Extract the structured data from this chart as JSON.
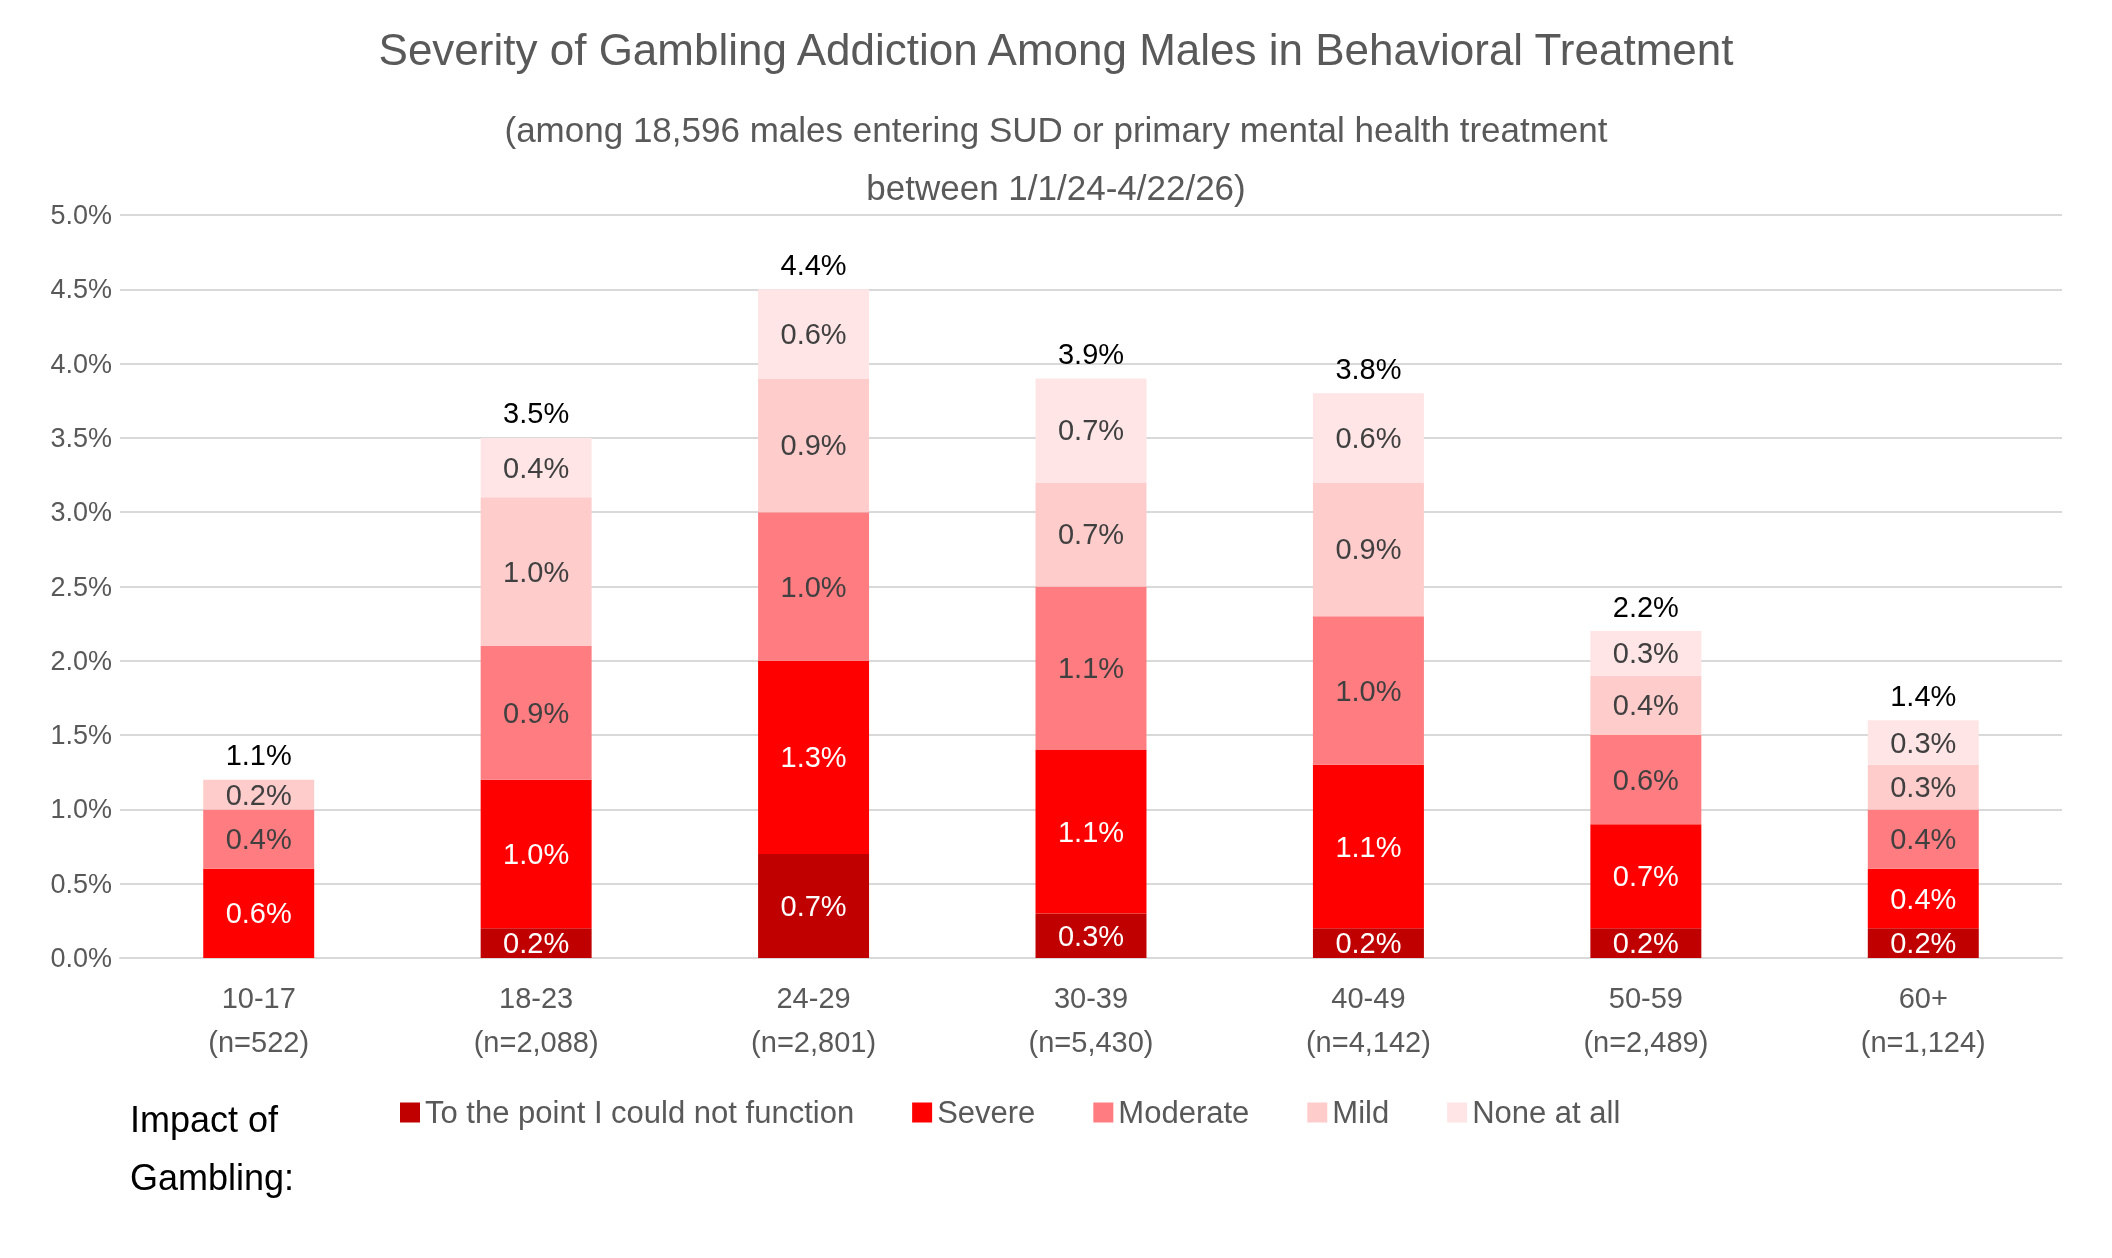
{
  "chart_data": {
    "type": "bar",
    "stacked": true,
    "title": "Severity of Gambling Addiction Among Males in Behavioral Treatment",
    "subtitle": "(among 18,596 males entering SUD or primary mental health treatment\nbetween 1/1/24-4/22/26)",
    "categories": [
      "10-17\n(n=522)",
      "18-23\n(n=2,088)",
      "24-29\n(n=2,801)",
      "30-39\n(n=5,430)",
      "40-49\n(n=4,142)",
      "50-59\n(n=2,489)",
      "60+\n(n=1,124)"
    ],
    "series": [
      {
        "name": "To the point I could not function",
        "color": "#c00000",
        "values": [
          null,
          0.2,
          0.7,
          0.3,
          0.2,
          0.2,
          0.2
        ],
        "value_labels": [
          null,
          "0.2%",
          "0.7%",
          "0.3%",
          "0.2%",
          "0.2%",
          "0.2%"
        ]
      },
      {
        "name": "Severe",
        "color": "#ff0000",
        "values": [
          0.6,
          1.0,
          1.3,
          1.1,
          1.1,
          0.7,
          0.4
        ],
        "value_labels": [
          "0.6%",
          "1.0%",
          "1.3%",
          "1.1%",
          "1.1%",
          "0.7%",
          "0.4%"
        ]
      },
      {
        "name": "Moderate",
        "color": "#ff7c80",
        "values": [
          0.4,
          0.9,
          1.0,
          1.1,
          1.0,
          0.6,
          0.4
        ],
        "value_labels": [
          "0.4%",
          "0.9%",
          "1.0%",
          "1.1%",
          "1.0%",
          "0.6%",
          "0.4%"
        ]
      },
      {
        "name": "Mild",
        "color": "#ffcccc",
        "values": [
          0.2,
          1.0,
          0.9,
          0.7,
          0.9,
          0.4,
          0.3
        ],
        "value_labels": [
          "0.2%",
          "1.0%",
          "0.9%",
          "0.7%",
          "0.9%",
          "0.4%",
          "0.3%"
        ]
      },
      {
        "name": "None at all",
        "color": "#ffe5e6",
        "values": [
          null,
          0.4,
          0.6,
          0.7,
          0.6,
          0.3,
          0.3
        ],
        "value_labels": [
          null,
          "0.4%",
          "0.6%",
          "0.7%",
          "0.6%",
          "0.3%",
          "0.3%"
        ]
      }
    ],
    "totals": [
      "1.1%",
      "3.5%",
      "4.4%",
      "3.9%",
      "3.8%",
      "2.2%",
      "1.4%"
    ],
    "ylim": [
      0,
      5
    ],
    "yticks": [
      {
        "value": 0,
        "label": "0.0%"
      },
      {
        "value": 0.5,
        "label": "0.5%"
      },
      {
        "value": 1,
        "label": "1.0%"
      },
      {
        "value": 1.5,
        "label": "1.5%"
      },
      {
        "value": 2,
        "label": "2.0%"
      },
      {
        "value": 2.5,
        "label": "2.5%"
      },
      {
        "value": 3,
        "label": "3.0%"
      },
      {
        "value": 3.5,
        "label": "3.5%"
      },
      {
        "value": 4,
        "label": "4.0%"
      },
      {
        "value": 4.5,
        "label": "4.5%"
      },
      {
        "value": 5,
        "label": "5.0%"
      }
    ],
    "grid": "y",
    "legend": "bottom",
    "legend_title": "Impact of\nGambling:"
  }
}
